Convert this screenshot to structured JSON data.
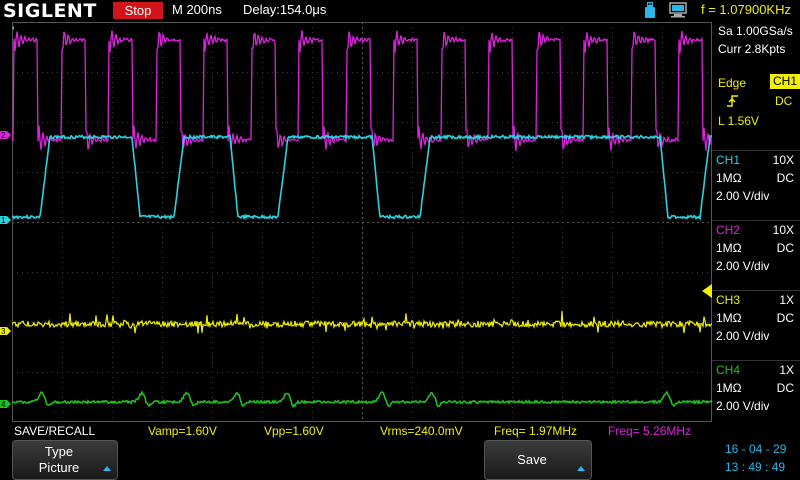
{
  "header": {
    "brand": "SIGLENT",
    "run_state": "Stop",
    "timebase": "M 200ns",
    "delay": "Delay:154.0μs",
    "frequency": "f = 1.07900KHz"
  },
  "acquisition": {
    "sample_rate": "Sa 1.00GSa/s",
    "memory": "Curr 2.8Kpts"
  },
  "trigger": {
    "mode": "Edge",
    "source": "CH1",
    "coupling": "DC",
    "level": "L  1.56V",
    "edge_icon": "rising-edge-icon"
  },
  "channels": [
    {
      "name": "CH1",
      "probe": "10X",
      "impedance": "1MΩ",
      "coupling": "DC",
      "scale": "2.00 V/div",
      "color": "#27d4e0"
    },
    {
      "name": "CH2",
      "probe": "10X",
      "impedance": "1MΩ",
      "coupling": "DC",
      "scale": "2.00 V/div",
      "color": "#e020e0"
    },
    {
      "name": "CH3",
      "probe": "1X",
      "impedance": "1MΩ",
      "coupling": "DC",
      "scale": "2.00 V/div",
      "color": "#f0f000"
    },
    {
      "name": "CH4",
      "probe": "1X",
      "impedance": "1MΩ",
      "coupling": "DC",
      "scale": "2.00 V/div",
      "color": "#20c020"
    }
  ],
  "markers": {
    "ch1": "1",
    "ch2": "2",
    "ch3": "3",
    "ch4": "4"
  },
  "measurements": {
    "menu": "SAVE/RECALL",
    "vamp": "Vamp=1.60V",
    "vpp": "Vpp=1.60V",
    "vrms": "Vrms=240.0mV",
    "freq_ch3": "Freq= 1.97MHz",
    "freq_ch2": "Freq= 5.26MHz"
  },
  "softkeys": {
    "type_line1": "Type",
    "type_line2": "Picture",
    "save": "Save"
  },
  "datetime": {
    "date": "16 - 04 - 29",
    "time": "13 : 49 : 49"
  },
  "colors": {
    "ch1": "#27d4e0",
    "ch2": "#e020e0",
    "ch3": "#f0f000",
    "ch4": "#20c020",
    "stop_badge": "#d4141b",
    "accent": "#27b8e8"
  }
}
